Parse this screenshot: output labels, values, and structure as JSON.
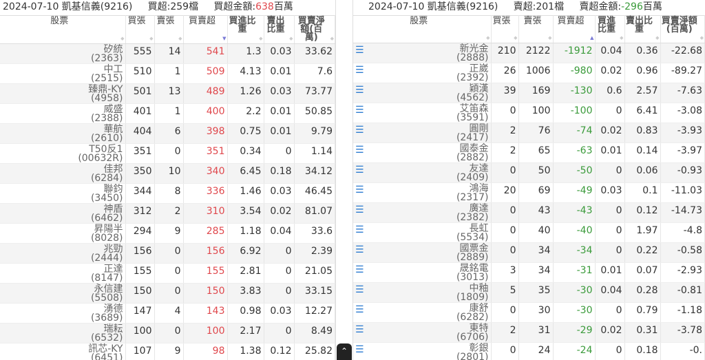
{
  "left": {
    "title": {
      "date_broker": "2024-07-10 凱基信義(9216)",
      "count_label": "買超:259檔",
      "amount_label": "買超金額:",
      "amount_value": "638",
      "amount_unit": "百萬"
    },
    "headers": [
      "股票",
      "買張",
      "賣張",
      "買賣超",
      "買進比重",
      "賣出比重",
      "買賣淨額(百萬)"
    ],
    "sorted_column": "買賣超",
    "sort_direction": "desc",
    "rows": [
      {
        "name": "矽統",
        "code": "(2363)",
        "buy": "555",
        "sell": "14",
        "net": "541",
        "buy_ratio": "1.3",
        "sell_ratio": "0.03",
        "amount": "33.62"
      },
      {
        "name": "中工",
        "code": "(2515)",
        "buy": "510",
        "sell": "1",
        "net": "509",
        "buy_ratio": "4.13",
        "sell_ratio": "0.01",
        "amount": "7.6"
      },
      {
        "name": "臻鼎-KY",
        "code": "(4958)",
        "buy": "501",
        "sell": "13",
        "net": "489",
        "buy_ratio": "1.26",
        "sell_ratio": "0.03",
        "amount": "73.77"
      },
      {
        "name": "威盛",
        "code": "(2388)",
        "buy": "401",
        "sell": "1",
        "net": "400",
        "buy_ratio": "2.2",
        "sell_ratio": "0.01",
        "amount": "50.85"
      },
      {
        "name": "華航",
        "code": "(2610)",
        "buy": "404",
        "sell": "6",
        "net": "398",
        "buy_ratio": "0.75",
        "sell_ratio": "0.01",
        "amount": "9.79"
      },
      {
        "name": "T50反1",
        "code": "(00632R)",
        "buy": "351",
        "sell": "0",
        "net": "351",
        "buy_ratio": "0.34",
        "sell_ratio": "0",
        "amount": "1.14"
      },
      {
        "name": "佳邦",
        "code": "(6284)",
        "buy": "350",
        "sell": "10",
        "net": "340",
        "buy_ratio": "6.45",
        "sell_ratio": "0.18",
        "amount": "34.12"
      },
      {
        "name": "聯鈞",
        "code": "(3450)",
        "buy": "344",
        "sell": "8",
        "net": "336",
        "buy_ratio": "1.46",
        "sell_ratio": "0.03",
        "amount": "46.45"
      },
      {
        "name": "神盾",
        "code": "(6462)",
        "buy": "312",
        "sell": "2",
        "net": "310",
        "buy_ratio": "3.54",
        "sell_ratio": "0.02",
        "amount": "81.07"
      },
      {
        "name": "昇陽半",
        "code": "(8028)",
        "buy": "294",
        "sell": "9",
        "net": "285",
        "buy_ratio": "1.18",
        "sell_ratio": "0.04",
        "amount": "33.6"
      },
      {
        "name": "兆勁",
        "code": "(2444)",
        "buy": "156",
        "sell": "0",
        "net": "156",
        "buy_ratio": "6.92",
        "sell_ratio": "0",
        "amount": "2.39"
      },
      {
        "name": "正達",
        "code": "(8147)",
        "buy": "155",
        "sell": "0",
        "net": "155",
        "buy_ratio": "2.81",
        "sell_ratio": "0",
        "amount": "21.05"
      },
      {
        "name": "永信建",
        "code": "(5508)",
        "buy": "150",
        "sell": "0",
        "net": "150",
        "buy_ratio": "3.83",
        "sell_ratio": "0",
        "amount": "33.15"
      },
      {
        "name": "湧德",
        "code": "(3689)",
        "buy": "147",
        "sell": "4",
        "net": "143",
        "buy_ratio": "0.98",
        "sell_ratio": "0.03",
        "amount": "12.27"
      },
      {
        "name": "瑞耘",
        "code": "(6532)",
        "buy": "100",
        "sell": "0",
        "net": "100",
        "buy_ratio": "2.17",
        "sell_ratio": "0",
        "amount": "8.49"
      },
      {
        "name": "訊芯-KY",
        "code": "(6451)",
        "buy": "107",
        "sell": "9",
        "net": "98",
        "buy_ratio": "1.38",
        "sell_ratio": "0.12",
        "amount": "25.82"
      }
    ]
  },
  "right": {
    "title": {
      "date_broker": "2024-07-10 凱基信義(9216)",
      "count_label": "賣超:201檔",
      "amount_label": "賣超金額:",
      "amount_value": "-296",
      "amount_unit": "百萬"
    },
    "headers": [
      "股票",
      "買張",
      "賣張",
      "買賣超",
      "買進比重",
      "賣出比重",
      "買賣淨額(百萬)"
    ],
    "sorted_column": "買賣超",
    "sort_direction": "asc",
    "row_icon": "list-icon",
    "rows": [
      {
        "name": "新光金",
        "code": "(2888)",
        "buy": "210",
        "sell": "2122",
        "net": "-1912",
        "buy_ratio": "0.04",
        "sell_ratio": "0.36",
        "amount": "-22.68"
      },
      {
        "name": "正崴",
        "code": "(2392)",
        "buy": "26",
        "sell": "1006",
        "net": "-980",
        "buy_ratio": "0.02",
        "sell_ratio": "0.96",
        "amount": "-89.27"
      },
      {
        "name": "穎漢",
        "code": "(4562)",
        "buy": "39",
        "sell": "169",
        "net": "-130",
        "buy_ratio": "0.6",
        "sell_ratio": "2.57",
        "amount": "-7.63"
      },
      {
        "name": "艾笛森",
        "code": "(3591)",
        "buy": "0",
        "sell": "100",
        "net": "-100",
        "buy_ratio": "0",
        "sell_ratio": "6.41",
        "amount": "-3.08"
      },
      {
        "name": "圓剛",
        "code": "(2417)",
        "buy": "2",
        "sell": "76",
        "net": "-74",
        "buy_ratio": "0.02",
        "sell_ratio": "0.83",
        "amount": "-3.93"
      },
      {
        "name": "國泰金",
        "code": "(2882)",
        "buy": "2",
        "sell": "65",
        "net": "-63",
        "buy_ratio": "0.01",
        "sell_ratio": "0.14",
        "amount": "-3.97"
      },
      {
        "name": "友達",
        "code": "(2409)",
        "buy": "0",
        "sell": "50",
        "net": "-50",
        "buy_ratio": "0",
        "sell_ratio": "0.06",
        "amount": "-0.93"
      },
      {
        "name": "鴻海",
        "code": "(2317)",
        "buy": "20",
        "sell": "69",
        "net": "-49",
        "buy_ratio": "0.03",
        "sell_ratio": "0.1",
        "amount": "-11.03"
      },
      {
        "name": "廣達",
        "code": "(2382)",
        "buy": "0",
        "sell": "43",
        "net": "-43",
        "buy_ratio": "0",
        "sell_ratio": "0.12",
        "amount": "-14.73"
      },
      {
        "name": "長虹",
        "code": "(5534)",
        "buy": "0",
        "sell": "40",
        "net": "-40",
        "buy_ratio": "0",
        "sell_ratio": "1.97",
        "amount": "-4.8"
      },
      {
        "name": "國票金",
        "code": "(2889)",
        "buy": "0",
        "sell": "34",
        "net": "-34",
        "buy_ratio": "0",
        "sell_ratio": "0.22",
        "amount": "-0.58"
      },
      {
        "name": "晟銘電",
        "code": "(3013)",
        "buy": "3",
        "sell": "34",
        "net": "-31",
        "buy_ratio": "0.01",
        "sell_ratio": "0.07",
        "amount": "-2.93"
      },
      {
        "name": "中釉",
        "code": "(1809)",
        "buy": "5",
        "sell": "35",
        "net": "-30",
        "buy_ratio": "0.04",
        "sell_ratio": "0.28",
        "amount": "-0.81"
      },
      {
        "name": "康舒",
        "code": "(6282)",
        "buy": "0",
        "sell": "30",
        "net": "-30",
        "buy_ratio": "0",
        "sell_ratio": "0.79",
        "amount": "-1.18"
      },
      {
        "name": "東特",
        "code": "(6706)",
        "buy": "2",
        "sell": "31",
        "net": "-29",
        "buy_ratio": "0.02",
        "sell_ratio": "0.31",
        "amount": "-3.78"
      },
      {
        "name": "彰銀",
        "code": "(2801)",
        "buy": "0",
        "sell": "24",
        "net": "-24",
        "buy_ratio": "0",
        "sell_ratio": "0.18",
        "amount": "-0."
      }
    ]
  },
  "scroll_top_icon": "chevron-up-icon",
  "colors": {
    "buy": "#e0474c",
    "sell": "#3a9a3a",
    "row_icon": "#2a7ad0"
  }
}
